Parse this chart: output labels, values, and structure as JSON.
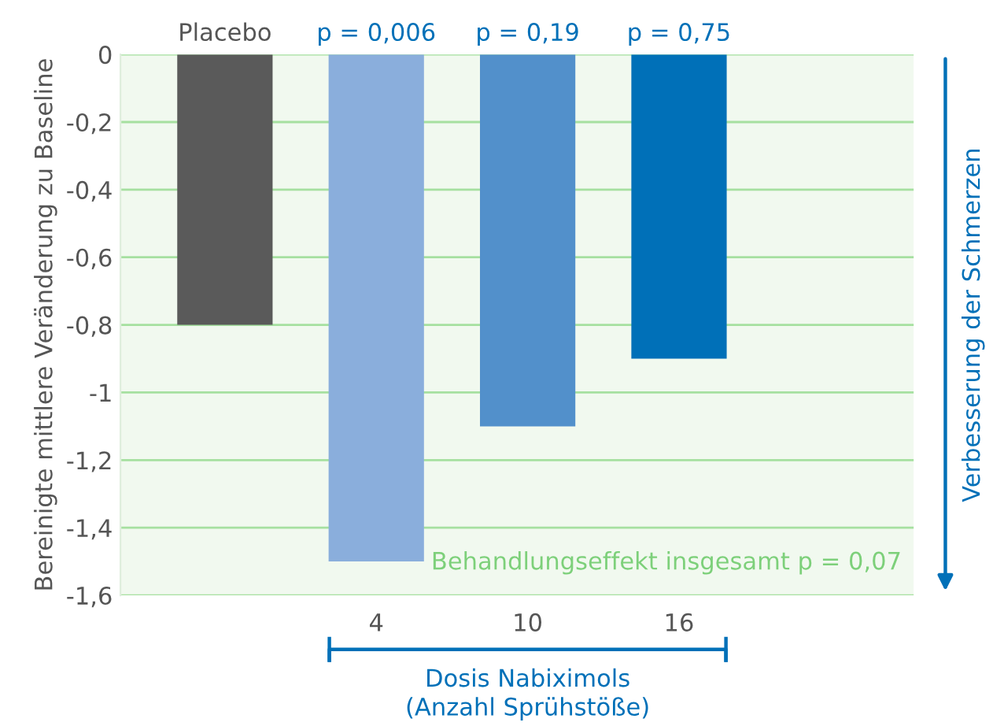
{
  "chart_data": {
    "type": "bar",
    "ylabel": "Bereinigte mittlere Veränderung zu Baseline",
    "xlabel": "Dosis Nabiximols\n(Anzahl Sprühstöße)",
    "categories": [
      null,
      "4",
      "10",
      "16"
    ],
    "values": [
      -0.8,
      -1.5,
      -1.1,
      -0.9
    ],
    "colors": [
      "#5a5a5a",
      "#8aaedc",
      "#5290cb",
      "#0070b8"
    ],
    "ylim": [
      -1.6,
      0
    ],
    "yticks": [
      {
        "value": 0,
        "label": "0"
      },
      {
        "value": -0.2,
        "label": "-0,2"
      },
      {
        "value": -0.4,
        "label": "-0,4"
      },
      {
        "value": -0.6,
        "label": "-0,6"
      },
      {
        "value": -0.8,
        "label": "-0,8"
      },
      {
        "value": -1,
        "label": "-1"
      },
      {
        "value": -1.2,
        "label": "-1,2"
      },
      {
        "value": -1.4,
        "label": "-1,4"
      },
      {
        "value": -1.6,
        "label": "-1,6"
      }
    ],
    "grid": "y",
    "legend": false,
    "annotations": [
      {
        "text": "Placebo",
        "y": 0
      },
      {
        "text": "p = 0,006",
        "x": "4",
        "y": 0
      },
      {
        "text": "p = 0,19",
        "x": "10",
        "y": 0
      },
      {
        "text": "p = 0,75",
        "x": "16",
        "y": 0
      },
      "Behandlungseffekt insgesamt p = 0,07",
      "Verbesserung der Schmerzen"
    ]
  }
}
